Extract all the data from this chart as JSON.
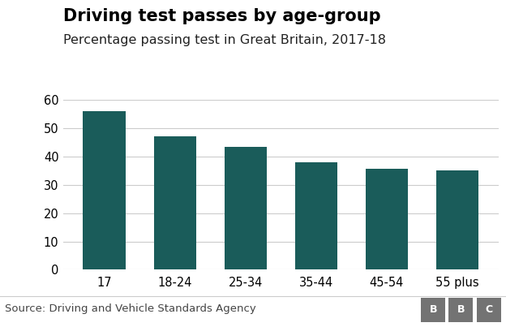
{
  "title": "Driving test passes by age-group",
  "subtitle": "Percentage passing test in Great Britain, 2017-18",
  "categories": [
    "17",
    "18-24",
    "25-34",
    "35-44",
    "45-54",
    "55 plus"
  ],
  "values": [
    56,
    47,
    43.5,
    38,
    35.5,
    35
  ],
  "bar_color": "#1a5c5a",
  "ylim": [
    0,
    60
  ],
  "yticks": [
    0,
    10,
    20,
    30,
    40,
    50,
    60
  ],
  "source_text": "Source: Driving and Vehicle Standards Agency",
  "title_fontsize": 15,
  "subtitle_fontsize": 11.5,
  "tick_fontsize": 10.5,
  "source_fontsize": 9.5,
  "background_color": "#ffffff",
  "grid_color": "#cccccc",
  "bbc_letters": [
    "B",
    "B",
    "C"
  ],
  "bbc_bg": "#737373",
  "bbc_fg": "#ffffff"
}
